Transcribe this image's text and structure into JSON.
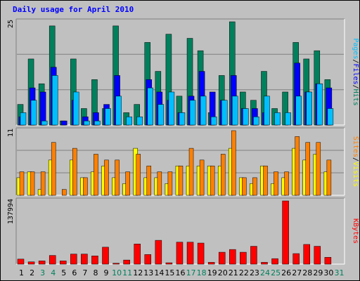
{
  "title": "Daily usage for April 2010",
  "colors": {
    "hits": "#00805c",
    "files": "#0000ff",
    "pages": "#00bfff",
    "visits": "#ffff00",
    "sites": "#ff8000",
    "kbytes": "#ff0000",
    "weekend_day": "#00805c",
    "weekday_day": "#000000"
  },
  "chart_data": [
    {
      "type": "bar",
      "categories": [
        "1",
        "2",
        "3",
        "4",
        "5",
        "6",
        "7",
        "8",
        "9",
        "10",
        "11",
        "12",
        "13",
        "14",
        "15",
        "16",
        "17",
        "18",
        "19",
        "20",
        "21",
        "22",
        "23",
        "24",
        "25",
        "26",
        "27",
        "28",
        "29",
        "30",
        "31"
      ],
      "ylim": [
        0,
        25
      ],
      "ytick": "25",
      "label_parts": [
        "Pages",
        "/",
        "Files",
        "/",
        "Hits"
      ],
      "series": [
        {
          "name": "Hits",
          "values": [
            5,
            16,
            10,
            24,
            1,
            16,
            4,
            11,
            4,
            24,
            3,
            5,
            20,
            13,
            22,
            7,
            21,
            18,
            3,
            12,
            25,
            8,
            6,
            13,
            4,
            8,
            20,
            16,
            18,
            11,
            0
          ]
        },
        {
          "name": "Files",
          "values": [
            2,
            9,
            8,
            14,
            1,
            6,
            2,
            3,
            5,
            12,
            0,
            0,
            11,
            8,
            6,
            3,
            7,
            13,
            8,
            6,
            12,
            4,
            4,
            3,
            0,
            0,
            15,
            8,
            10,
            9,
            0
          ]
        },
        {
          "name": "Pages",
          "values": [
            3,
            6,
            1,
            12,
            0,
            8,
            1,
            1,
            4,
            7,
            2,
            2,
            9,
            5,
            8,
            3,
            6,
            7,
            2,
            6,
            7,
            4,
            2,
            7,
            3,
            3,
            7,
            8,
            10,
            4,
            0
          ]
        }
      ]
    },
    {
      "type": "bar",
      "categories": [
        "1",
        "2",
        "3",
        "4",
        "5",
        "6",
        "7",
        "8",
        "9",
        "10",
        "11",
        "12",
        "13",
        "14",
        "15",
        "16",
        "17",
        "18",
        "19",
        "20",
        "21",
        "22",
        "23",
        "24",
        "25",
        "26",
        "27",
        "28",
        "29",
        "30",
        "31"
      ],
      "ylim": [
        0,
        11
      ],
      "ytick": "11",
      "label_parts": [
        "Sites",
        "/",
        "Visits"
      ],
      "series": [
        {
          "name": "Visits",
          "values": [
            3,
            4,
            1,
            6,
            0,
            6,
            3,
            4,
            5,
            3,
            2,
            8,
            3,
            3,
            2,
            5,
            5,
            5,
            5,
            5,
            8,
            3,
            2,
            5,
            2,
            3,
            8,
            6,
            7,
            4,
            0
          ]
        },
        {
          "name": "Sites",
          "values": [
            4,
            4,
            4,
            9,
            1,
            8,
            3,
            7,
            6,
            6,
            4,
            7,
            5,
            4,
            4,
            5,
            8,
            6,
            5,
            7,
            11,
            3,
            3,
            5,
            4,
            4,
            10,
            9,
            9,
            6,
            0
          ]
        }
      ]
    },
    {
      "type": "bar",
      "categories": [
        "1",
        "2",
        "3",
        "4",
        "5",
        "6",
        "7",
        "8",
        "9",
        "10",
        "11",
        "12",
        "13",
        "14",
        "15",
        "16",
        "17",
        "18",
        "19",
        "20",
        "21",
        "22",
        "23",
        "24",
        "25",
        "26",
        "27",
        "28",
        "29",
        "30",
        "31"
      ],
      "ylim": [
        0,
        137994
      ],
      "ytick": "137994",
      "label_parts": [
        "KBytes"
      ],
      "series": [
        {
          "name": "KBytes",
          "values": [
            11000,
            5000,
            7000,
            19000,
            7000,
            22000,
            22000,
            18000,
            37000,
            2000,
            9000,
            44000,
            21000,
            52000,
            3000,
            48000,
            48000,
            46000,
            4000,
            26000,
            32000,
            26000,
            39000,
            4000,
            12000,
            137994,
            23000,
            43000,
            39000,
            15000,
            0
          ]
        }
      ]
    }
  ],
  "days": [
    "1",
    "2",
    "3",
    "4",
    "5",
    "6",
    "7",
    "8",
    "9",
    "10",
    "11",
    "12",
    "13",
    "14",
    "15",
    "16",
    "17",
    "18",
    "19",
    "20",
    "21",
    "22",
    "23",
    "24",
    "25",
    "26",
    "27",
    "28",
    "29",
    "30",
    "31"
  ],
  "weekend": [
    3,
    4,
    10,
    11,
    17,
    18,
    24,
    25,
    31
  ]
}
